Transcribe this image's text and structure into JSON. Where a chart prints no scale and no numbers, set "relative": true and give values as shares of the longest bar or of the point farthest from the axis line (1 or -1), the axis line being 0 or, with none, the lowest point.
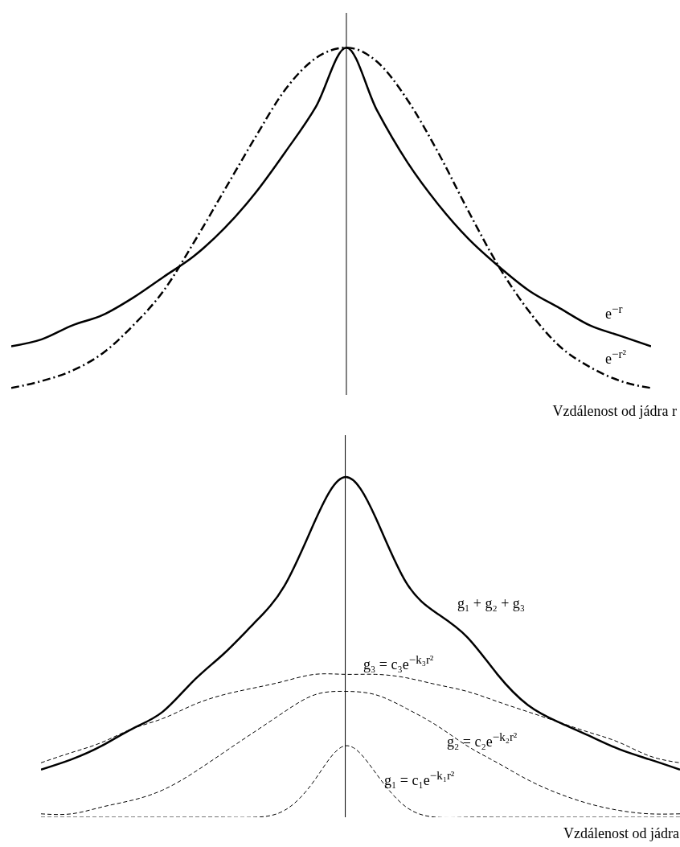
{
  "chart_data": [
    {
      "type": "line",
      "relative": true,
      "xlabel": "Vzdálenost od jádra r",
      "categories": [
        null,
        null,
        null,
        null,
        null,
        null,
        null,
        null,
        null,
        null,
        null,
        null,
        null,
        null,
        null,
        null,
        null,
        null,
        null,
        null,
        null,
        null
      ],
      "series": [
        {
          "name": "e$^{−r}$",
          "color": "#000000",
          "line_style": "solid",
          "values": [
            0.14,
            0.16,
            0.2,
            0.23,
            0.28,
            0.34,
            0.4,
            0.48,
            0.58,
            0.7,
            0.83,
            1,
            0.82,
            0.67,
            0.55,
            0.45,
            0.37,
            0.3,
            0.25,
            0.2,
            0.17,
            0.14
          ]
        },
        {
          "name": "e$^{−r²}$",
          "color": "#000000",
          "line_style": "dashed",
          "values": [
            0.02,
            0.04,
            0.07,
            0.12,
            0.2,
            0.3,
            0.44,
            0.59,
            0.74,
            0.88,
            0.97,
            1,
            0.96,
            0.85,
            0.7,
            0.53,
            0.37,
            0.24,
            0.14,
            0.08,
            0.04,
            0.02
          ]
        }
      ]
    },
    {
      "type": "line",
      "relative": true,
      "xlabel": "Vzdálenost od jádra",
      "categories": [
        null,
        null,
        null,
        null,
        null,
        null,
        null,
        null,
        null,
        null,
        null,
        null,
        null,
        null,
        null,
        null,
        null,
        null,
        null,
        null,
        null,
        null
      ],
      "series": [
        {
          "name": "g₁ + g₂ + g₃",
          "color": "#000000",
          "line_style": "solid",
          "values": [
            0.14,
            0.17,
            0.21,
            0.26,
            0.31,
            0.4,
            0.48,
            0.57,
            0.68,
            0.87,
            1,
            0.88,
            0.69,
            0.6,
            0.53,
            0.42,
            0.33,
            0.28,
            0.24,
            0.2,
            0.17,
            0.14
          ]
        },
        {
          "name": "g₃ = c₃e$^{−k₃r²}$",
          "color": "#000000",
          "line_style": "dashed",
          "values": [
            0.16,
            0.19,
            0.22,
            0.26,
            0.29,
            0.33,
            0.36,
            0.38,
            0.4,
            0.42,
            0.42,
            0.42,
            0.41,
            0.39,
            0.37,
            0.34,
            0.31,
            0.28,
            0.25,
            0.22,
            0.18,
            0.16
          ]
        },
        {
          "name": "g₂ = c₂e$^{−k₂r²}$",
          "color": "#000000",
          "line_style": "dashed",
          "values": [
            0.01,
            0.01,
            0.03,
            0.05,
            0.08,
            0.13,
            0.19,
            0.25,
            0.31,
            0.36,
            0.37,
            0.36,
            0.32,
            0.27,
            0.21,
            0.16,
            0.11,
            0.07,
            0.04,
            0.02,
            0.01,
            0.01
          ]
        },
        {
          "name": "g₁ = c₁e$^{−k₁r²}$",
          "color": "#000000",
          "line_style": "dashed",
          "values": [
            0,
            0,
            0,
            0,
            0,
            0,
            0,
            0,
            0.02,
            0.11,
            0.21,
            0.13,
            0.03,
            0,
            0,
            0,
            0,
            0,
            0,
            0,
            0,
            0
          ]
        }
      ]
    }
  ]
}
